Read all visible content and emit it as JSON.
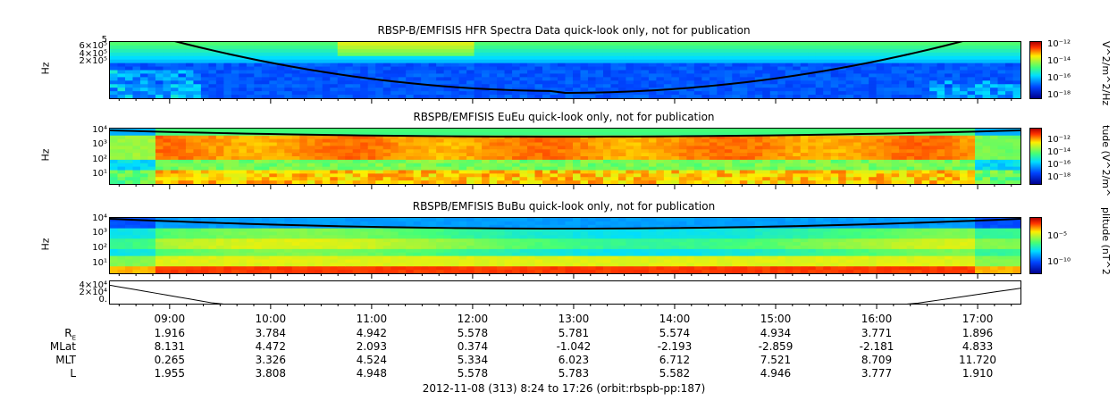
{
  "chart_data": [
    {
      "type": "heatmap",
      "title": "RBSP-B/EMFISIS  HFR Spectra Data quick-look only, not for publication",
      "ylabel": "Hz",
      "yticks": [
        "5",
        "6×10⁵",
        "4×10⁵",
        "2×10⁵"
      ],
      "colorbar_label": "V^2/m^2/Hz",
      "colorbar_ticks": [
        "10⁻¹²",
        "10⁻¹⁴",
        "10⁻¹⁶",
        "10⁻¹⁸"
      ],
      "colorbar_range": [
        -18,
        -12
      ]
    },
    {
      "type": "heatmap",
      "title": "RBSPB/EMFISIS  EuEu quick-look only, not for publication",
      "ylabel": "Hz",
      "yticks": [
        "10⁴",
        "10³",
        "10²",
        "10¹"
      ],
      "colorbar_label": "tude (V^2/m^",
      "colorbar_ticks": [
        "10⁻¹²",
        "10⁻¹⁴",
        "10⁻¹⁶",
        "10⁻¹⁸"
      ],
      "colorbar_range": [
        -18,
        -12
      ]
    },
    {
      "type": "heatmap",
      "title": "RBSPB/EMFISIS  BuBu quick-look only, not for publication",
      "ylabel": "Hz",
      "yticks": [
        "10⁴",
        "10³",
        "10²",
        "10¹"
      ],
      "colorbar_label": "plitude (nT^2",
      "colorbar_ticks": [
        "10⁻⁵",
        "10⁻¹⁰"
      ],
      "colorbar_range": [
        -12,
        -3
      ]
    },
    {
      "type": "line",
      "yticks": [
        "4×10⁴",
        "2×10⁴",
        "0."
      ],
      "ylim": [
        0,
        45000
      ]
    }
  ],
  "xaxis": {
    "ticks": [
      "09:00",
      "10:00",
      "11:00",
      "12:00",
      "13:00",
      "14:00",
      "15:00",
      "16:00",
      "17:00"
    ]
  },
  "ephemeris": {
    "rows": [
      {
        "label": "R",
        "sub": "E",
        "values": [
          "1.916",
          "3.784",
          "4.942",
          "5.578",
          "5.781",
          "5.574",
          "4.934",
          "3.771",
          "1.896"
        ]
      },
      {
        "label": "MLat",
        "values": [
          "8.131",
          "4.472",
          "2.093",
          "0.374",
          "-1.042",
          "-2.193",
          "-2.859",
          "-2.181",
          "4.833"
        ]
      },
      {
        "label": "MLT",
        "values": [
          "0.265",
          "3.326",
          "4.524",
          "5.334",
          "6.023",
          "6.712",
          "7.521",
          "8.709",
          "11.720"
        ]
      },
      {
        "label": "L",
        "values": [
          "1.955",
          "3.808",
          "4.948",
          "5.578",
          "5.783",
          "5.582",
          "4.946",
          "3.777",
          "1.910"
        ]
      }
    ]
  },
  "footer": "2012-11-08 (313) 8:24 to 17:26 (orbit:rbspb-pp:187)",
  "colors": {
    "low": "#0000cc",
    "mid": "#33dd55",
    "high": "#dd1100"
  }
}
